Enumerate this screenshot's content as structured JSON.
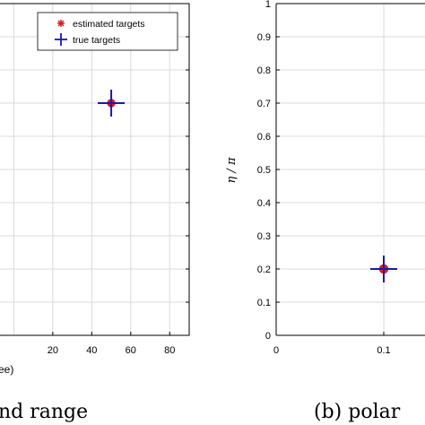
{
  "chart_data": [
    {
      "type": "scatter",
      "xlabel_fragment": "ee)",
      "caption_fragment": "nd range",
      "x_ticks": [
        "20",
        "40",
        "60",
        "80"
      ],
      "xlim_visible": [
        -8,
        90
      ],
      "legend": {
        "placement": "top-right",
        "entries": [
          "estimated targets",
          "true targets"
        ]
      },
      "series": [
        {
          "name": "estimated targets",
          "points": [
            {
              "x": 50,
              "y": 0.7
            }
          ]
        },
        {
          "name": "true targets",
          "points": [
            {
              "x": 50,
              "y": 0.7
            }
          ]
        }
      ],
      "ylim": [
        0,
        1
      ],
      "grid": true
    },
    {
      "type": "scatter",
      "ylabel": "η / π",
      "caption_fragment": "(b) polar",
      "y_ticks": [
        "0",
        "0.1",
        "0.2",
        "0.3",
        "0.4",
        "0.5",
        "0.6",
        "0.7",
        "0.8",
        "0.9",
        "1"
      ],
      "x_ticks": [
        "0",
        "0.1"
      ],
      "ylim": [
        0,
        1
      ],
      "xlim_visible": [
        0,
        0.14
      ],
      "series": [
        {
          "name": "estimated targets",
          "points": [
            {
              "x": 0.1,
              "y": 0.2
            }
          ]
        },
        {
          "name": "true targets",
          "points": [
            {
              "x": 0.1,
              "y": 0.2
            }
          ]
        }
      ],
      "grid": true
    }
  ],
  "colors": {
    "estimated": "#d42020",
    "true": "#1a1aa8",
    "grid": "#d9d9d9",
    "axis": "#000000"
  }
}
